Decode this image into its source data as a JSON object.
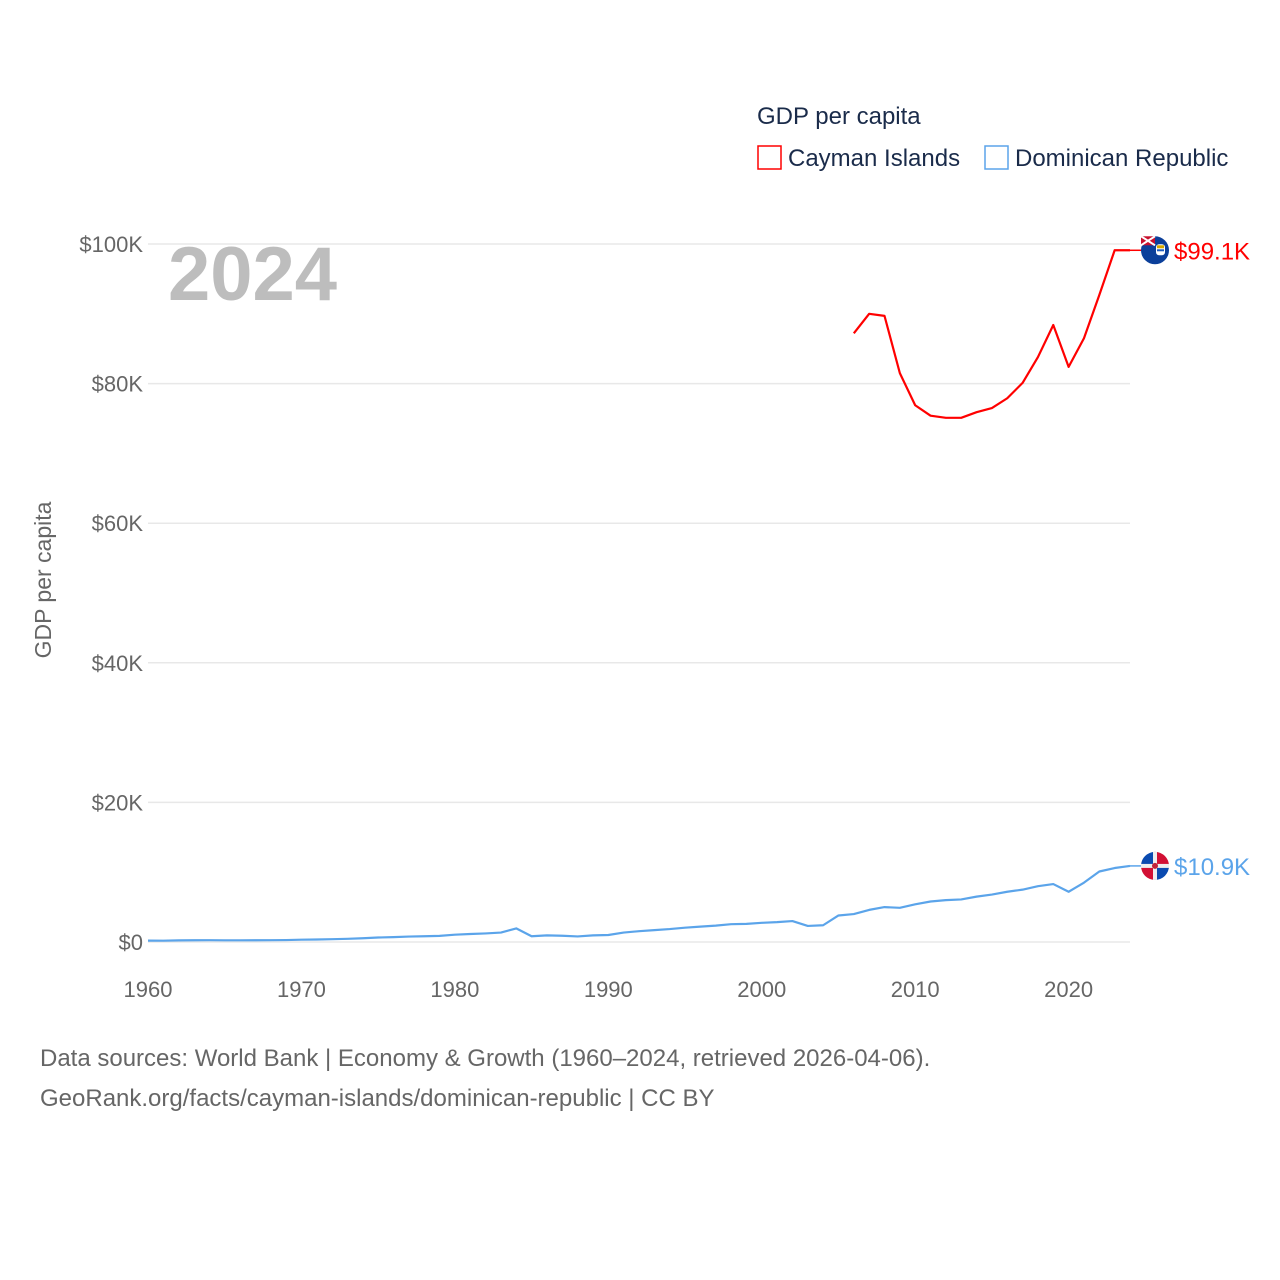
{
  "chart_data": {
    "type": "line",
    "title": "",
    "year_label": "2024",
    "ylabel": "GDP per capita",
    "xlabel": "",
    "xlim": [
      1960,
      2024
    ],
    "ylim": [
      0,
      100000
    ],
    "x_ticks": [
      "1960",
      "1970",
      "1980",
      "1990",
      "2000",
      "2010",
      "2020"
    ],
    "x_tick_values": [
      1960,
      1970,
      1980,
      1990,
      2000,
      2010,
      2020
    ],
    "y_ticks": [
      "$0",
      "$20K",
      "$40K",
      "$60K",
      "$80K",
      "$100K"
    ],
    "y_tick_values": [
      0,
      20000,
      40000,
      60000,
      80000,
      100000
    ],
    "grid": true,
    "legend": {
      "title": "GDP per capita",
      "placement": "top-right"
    },
    "series": [
      {
        "name": "Cayman Islands",
        "color": "#ff0000",
        "end_label": "$99.1K",
        "flag_icon": "cayman-islands-flag-icon",
        "x": [
          2006,
          2007,
          2008,
          2009,
          2010,
          2011,
          2012,
          2013,
          2014,
          2015,
          2016,
          2017,
          2018,
          2019,
          2020,
          2021,
          2022,
          2023,
          2024
        ],
        "values": [
          87200,
          90000,
          89700,
          81500,
          76900,
          75400,
          75100,
          75100,
          75900,
          76500,
          77900,
          80100,
          83800,
          88400,
          82400,
          86500,
          92700,
          99100,
          99100
        ]
      },
      {
        "name": "Dominican Republic",
        "color": "#5ba4ea",
        "end_label": "$10.9K",
        "flag_icon": "dominican-republic-flag-icon",
        "x": [
          1960,
          1961,
          1962,
          1963,
          1964,
          1965,
          1966,
          1967,
          1968,
          1969,
          1970,
          1971,
          1972,
          1973,
          1974,
          1975,
          1976,
          1977,
          1978,
          1979,
          1980,
          1981,
          1982,
          1983,
          1984,
          1985,
          1986,
          1987,
          1988,
          1989,
          1990,
          1991,
          1992,
          1993,
          1994,
          1995,
          1996,
          1997,
          1998,
          1999,
          2000,
          2001,
          2002,
          2003,
          2004,
          2005,
          2006,
          2007,
          2008,
          2009,
          2010,
          2011,
          2012,
          2013,
          2014,
          2015,
          2016,
          2017,
          2018,
          2019,
          2020,
          2021,
          2022,
          2023,
          2024
        ],
        "values": [
          200,
          190,
          230,
          250,
          260,
          240,
          240,
          250,
          260,
          280,
          330,
          360,
          400,
          460,
          540,
          640,
          700,
          780,
          820,
          880,
          1050,
          1150,
          1230,
          1350,
          1950,
          820,
          950,
          900,
          800,
          950,
          1000,
          1350,
          1550,
          1700,
          1850,
          2050,
          2200,
          2350,
          2550,
          2600,
          2750,
          2850,
          3000,
          2300,
          2400,
          3800,
          4000,
          4600,
          5000,
          4900,
          5400,
          5800,
          6000,
          6100,
          6500,
          6800,
          7200,
          7500,
          8000,
          8300,
          7200,
          8500,
          10100,
          10600,
          10900
        ]
      }
    ]
  },
  "footer": {
    "line1": "Data sources: World Bank | Economy & Growth (1960–2024, retrieved 2026-04-06).",
    "line2": "GeoRank.org/facts/cayman-islands/dominican-republic | CC BY"
  }
}
